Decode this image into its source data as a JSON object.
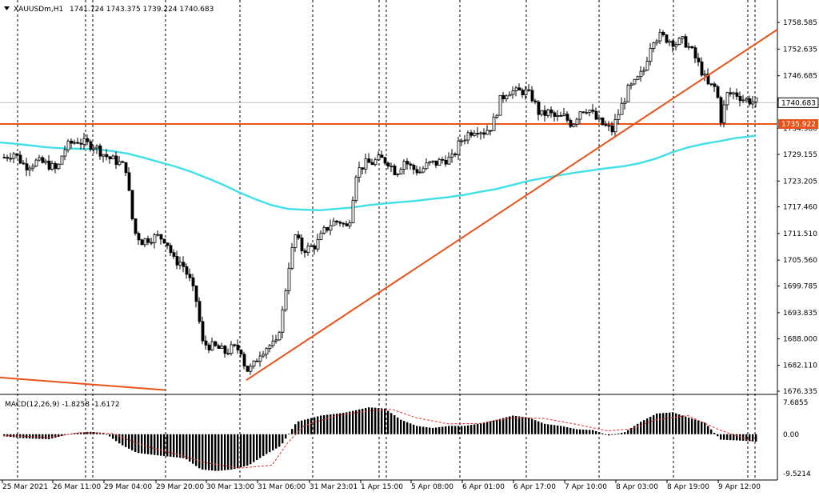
{
  "window": {
    "symbol": "XAUUSDm,H1",
    "ohlc": "1741.724 1743.375 1739.224 1740.683",
    "triangle_icon": "dropdown-triangle-icon"
  },
  "price_axis": {
    "ticks": [
      "1758.585",
      "1752.635",
      "1746.685",
      "1740.683",
      "1735.922",
      "1734.980",
      "1729.155",
      "1723.205",
      "1717.460",
      "1711.510",
      "1705.560",
      "1699.785",
      "1693.835",
      "1688.000",
      "1682.110",
      "1676.335"
    ],
    "tick_values": [
      1758.585,
      1752.635,
      1746.685,
      1734.98,
      1729.155,
      1723.205,
      1717.46,
      1711.51,
      1705.56,
      1699.785,
      1693.835,
      1688.0,
      1682.11,
      1676.335
    ],
    "current_price_label": "1740.683",
    "level_label": "1735.922"
  },
  "macd": {
    "label": "MACD(12,26,9) -1.8258 -1.6172",
    "ticks": [
      "7.6855",
      "0.00",
      "-9.5214"
    ],
    "tick_values": [
      7.6855,
      0,
      -9.5214
    ]
  },
  "time_axis": {
    "labels": [
      "25 Mar 2021",
      "26 Mar 11:00",
      "29 Mar 04:00",
      "29 Mar 20:00",
      "30 Mar 13:00",
      "31 Mar 06:00",
      "31 Mar 23:01",
      "1 Apr 15:00",
      "5 Apr 08:00",
      "6 Apr 01:00",
      "6 Apr 17:00",
      "7 Apr 10:00",
      "8 Apr 03:00",
      "8 Apr 19:00",
      "9 Apr 12:00"
    ]
  },
  "colors": {
    "background": "#ffffff",
    "candle": "#000000",
    "ma_line": "#40e0e6",
    "trend_line": "#e8531a",
    "level_line": "#e8531a",
    "level_label_bg": "#e8531a",
    "macd_bars": "#000000",
    "macd_signal": "#e03030",
    "separator": "#000000"
  },
  "chart_data": {
    "type": "candlestick",
    "symbol": "XAUUSDm",
    "timeframe": "H1",
    "last_ohlc": {
      "open": 1741.724,
      "high": 1743.375,
      "low": 1739.224,
      "close": 1740.683
    },
    "ylim": [
      1676.335,
      1758.585
    ],
    "horizontal_level": 1735.922,
    "trendline_points": [
      {
        "t": "30 Mar 13:00",
        "price": 1678.8
      },
      {
        "t": "9 Apr 12:00",
        "price": 1756.5
      }
    ],
    "moving_average_path": [
      [
        0,
        1731.8
      ],
      [
        20,
        1731.5
      ],
      [
        40,
        1731.1
      ],
      [
        60,
        1730.7
      ],
      [
        80,
        1730.5
      ],
      [
        100,
        1730.4
      ],
      [
        120,
        1730.3
      ],
      [
        140,
        1729.9
      ],
      [
        160,
        1729.3
      ],
      [
        180,
        1728.4
      ],
      [
        200,
        1727.4
      ],
      [
        220,
        1726.4
      ],
      [
        240,
        1725.2
      ],
      [
        260,
        1723.8
      ],
      [
        280,
        1722.3
      ],
      [
        300,
        1720.6
      ],
      [
        320,
        1719.1
      ],
      [
        340,
        1717.8
      ],
      [
        360,
        1717.0
      ],
      [
        380,
        1716.8
      ],
      [
        400,
        1716.7
      ],
      [
        420,
        1717.0
      ],
      [
        440,
        1717.3
      ],
      [
        460,
        1717.8
      ],
      [
        480,
        1718.2
      ],
      [
        500,
        1718.5
      ],
      [
        520,
        1718.8
      ],
      [
        540,
        1719.2
      ],
      [
        560,
        1719.6
      ],
      [
        580,
        1720.1
      ],
      [
        600,
        1720.8
      ],
      [
        620,
        1721.4
      ],
      [
        640,
        1722.3
      ],
      [
        660,
        1723.2
      ],
      [
        680,
        1723.9
      ],
      [
        700,
        1724.5
      ],
      [
        720,
        1725.1
      ],
      [
        740,
        1725.6
      ],
      [
        760,
        1726.1
      ],
      [
        780,
        1726.5
      ],
      [
        800,
        1727.2
      ],
      [
        820,
        1728.2
      ],
      [
        840,
        1729.6
      ],
      [
        860,
        1730.7
      ],
      [
        880,
        1731.5
      ],
      [
        900,
        1732.1
      ],
      [
        920,
        1732.8
      ],
      [
        945,
        1733.3
      ]
    ],
    "candles_sampled": [
      [
        4,
        1728.5
      ],
      [
        16,
        1729.5
      ],
      [
        30,
        1726.5
      ],
      [
        44,
        1727.5
      ],
      [
        58,
        1727
      ],
      [
        70,
        1725.5
      ],
      [
        78,
        1730
      ],
      [
        86,
        1731.5
      ],
      [
        96,
        1732.2
      ],
      [
        106,
        1731.5
      ],
      [
        116,
        1731.2
      ],
      [
        126,
        1729.5
      ],
      [
        136,
        1728.2
      ],
      [
        146,
        1727.5
      ],
      [
        156,
        1726
      ],
      [
        166,
        1712
      ],
      [
        176,
        1709.8
      ],
      [
        186,
        1710.5
      ],
      [
        196,
        1710.8
      ],
      [
        206,
        1710.2
      ],
      [
        216,
        1705.5
      ],
      [
        226,
        1705
      ],
      [
        236,
        1701
      ],
      [
        244,
        1696.5
      ],
      [
        252,
        1687
      ],
      [
        260,
        1686.5
      ],
      [
        270,
        1686
      ],
      [
        280,
        1685
      ],
      [
        290,
        1686
      ],
      [
        300,
        1685.5
      ],
      [
        306,
        1681
      ],
      [
        314,
        1681.5
      ],
      [
        324,
        1685
      ],
      [
        334,
        1686.5
      ],
      [
        344,
        1686.8
      ],
      [
        352,
        1694
      ],
      [
        360,
        1704.5
      ],
      [
        368,
        1711
      ],
      [
        376,
        1708
      ],
      [
        384,
        1708.2
      ],
      [
        394,
        1709
      ],
      [
        404,
        1712
      ],
      [
        414,
        1714
      ],
      [
        424,
        1714.2
      ],
      [
        434,
        1712.5
      ],
      [
        444,
        1725
      ],
      [
        454,
        1727
      ],
      [
        464,
        1727.3
      ],
      [
        474,
        1728.2
      ],
      [
        484,
        1727.5
      ],
      [
        494,
        1725
      ],
      [
        504,
        1727.8
      ],
      [
        514,
        1726
      ],
      [
        524,
        1725.3
      ],
      [
        534,
        1727
      ],
      [
        544,
        1727.2
      ],
      [
        554,
        1728
      ],
      [
        564,
        1728.2
      ],
      [
        574,
        1732
      ],
      [
        584,
        1733.8
      ],
      [
        594,
        1735
      ],
      [
        604,
        1734.2
      ],
      [
        614,
        1735.5
      ],
      [
        624,
        1741.2
      ],
      [
        634,
        1743.5
      ],
      [
        644,
        1743
      ],
      [
        654,
        1743.3
      ],
      [
        664,
        1741.8
      ],
      [
        674,
        1737.8
      ],
      [
        684,
        1738.5
      ],
      [
        694,
        1737.2
      ],
      [
        704,
        1737.5
      ],
      [
        714,
        1735.8
      ],
      [
        724,
        1739
      ],
      [
        734,
        1739.5
      ],
      [
        744,
        1737
      ],
      [
        754,
        1735.5
      ],
      [
        764,
        1734.5
      ],
      [
        774,
        1739.2
      ],
      [
        784,
        1743.5
      ],
      [
        794,
        1745.3
      ],
      [
        804,
        1748
      ],
      [
        814,
        1755
      ],
      [
        824,
        1755.5
      ],
      [
        834,
        1754.8
      ],
      [
        844,
        1754
      ],
      [
        854,
        1754.5
      ],
      [
        864,
        1752
      ],
      [
        874,
        1748.5
      ],
      [
        884,
        1744.5
      ],
      [
        894,
        1744
      ],
      [
        900,
        1737
      ],
      [
        908,
        1742.5
      ],
      [
        918,
        1742.8
      ],
      [
        928,
        1741.5
      ],
      [
        938,
        1741
      ],
      [
        946,
        1740.7
      ]
    ],
    "macd_histogram_sampled": [
      [
        4,
        -0.5
      ],
      [
        30,
        -1.0
      ],
      [
        60,
        -1.2
      ],
      [
        90,
        0.2
      ],
      [
        110,
        0.6
      ],
      [
        130,
        0.3
      ],
      [
        150,
        -2.5
      ],
      [
        170,
        -4.5
      ],
      [
        200,
        -5.2
      ],
      [
        230,
        -5.8
      ],
      [
        250,
        -8.5
      ],
      [
        270,
        -8.9
      ],
      [
        290,
        -8.5
      ],
      [
        310,
        -7.5
      ],
      [
        330,
        -5.0
      ],
      [
        350,
        -2.8
      ],
      [
        370,
        3.0
      ],
      [
        400,
        4.5
      ],
      [
        430,
        5.2
      ],
      [
        460,
        6.5
      ],
      [
        480,
        6.2
      ],
      [
        500,
        3.5
      ],
      [
        520,
        2.0
      ],
      [
        540,
        1.5
      ],
      [
        560,
        2.0
      ],
      [
        580,
        2.0
      ],
      [
        600,
        2.6
      ],
      [
        620,
        3.5
      ],
      [
        640,
        4.5
      ],
      [
        660,
        4.0
      ],
      [
        680,
        2.5
      ],
      [
        700,
        2.0
      ],
      [
        720,
        1.2
      ],
      [
        740,
        1.0
      ],
      [
        760,
        -0.3
      ],
      [
        780,
        0.5
      ],
      [
        800,
        3.0
      ],
      [
        820,
        5.0
      ],
      [
        840,
        5.3
      ],
      [
        860,
        4.0
      ],
      [
        880,
        2.8
      ],
      [
        900,
        -1.3
      ],
      [
        930,
        -1.6
      ],
      [
        946,
        -1.8
      ]
    ],
    "macd_signal_path": [
      [
        4,
        -0.3
      ],
      [
        60,
        -0.8
      ],
      [
        100,
        0.4
      ],
      [
        140,
        0.2
      ],
      [
        180,
        -2.8
      ],
      [
        220,
        -4.8
      ],
      [
        260,
        -7.0
      ],
      [
        300,
        -8.2
      ],
      [
        340,
        -7.5
      ],
      [
        360,
        -2.0
      ],
      [
        380,
        2.0
      ],
      [
        420,
        4.5
      ],
      [
        460,
        5.6
      ],
      [
        490,
        6.0
      ],
      [
        520,
        4.0
      ],
      [
        560,
        2.5
      ],
      [
        600,
        2.6
      ],
      [
        640,
        4.0
      ],
      [
        680,
        3.8
      ],
      [
        720,
        2.4
      ],
      [
        760,
        0.8
      ],
      [
        790,
        1.3
      ],
      [
        820,
        3.5
      ],
      [
        860,
        4.5
      ],
      [
        900,
        1.0
      ],
      [
        940,
        -1.6
      ]
    ]
  }
}
